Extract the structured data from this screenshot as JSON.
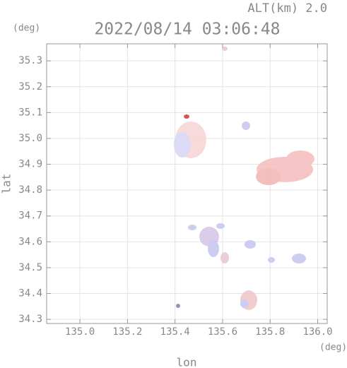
{
  "chart_data": {
    "type": "scatter",
    "title": "2022/08/14 03:06:48",
    "subtitle": "ALT(km) 2.0",
    "x_label": "lon",
    "y_label": "lat",
    "x_unit": "(deg)",
    "y_unit": "(deg)",
    "xlim": [
      134.86,
      136.04
    ],
    "ylim": [
      34.284,
      35.366
    ],
    "xticks": [
      {
        "value": 135,
        "label": "135.0"
      },
      135.2,
      135.4,
      135.6,
      135.8,
      {
        "value": 136,
        "label": "136.0"
      }
    ],
    "yticks": [
      34.3,
      34.4,
      34.5,
      34.6,
      34.7,
      34.8,
      34.9,
      {
        "value": 35,
        "label": "35.0"
      },
      35.1,
      35.2,
      35.3
    ],
    "grid": true
  }
}
